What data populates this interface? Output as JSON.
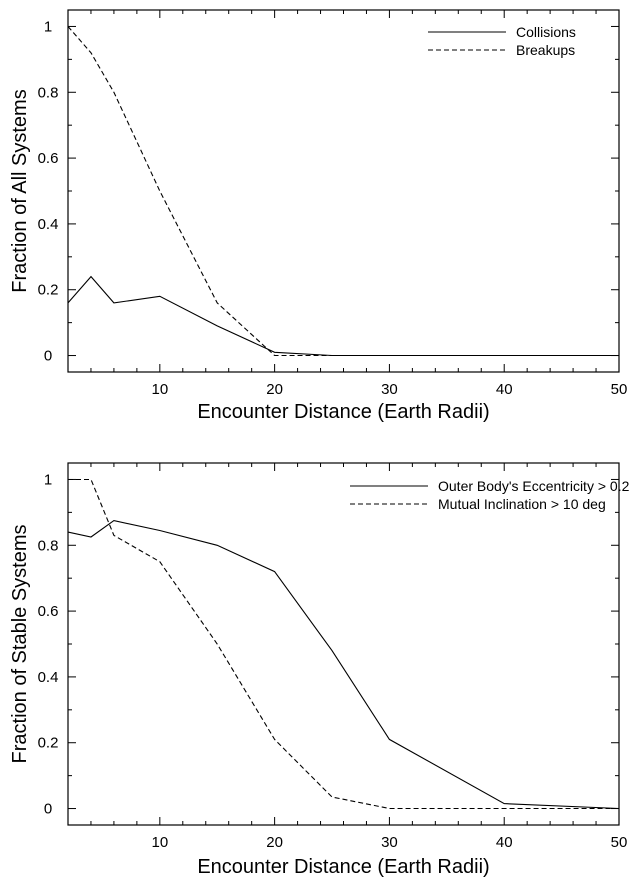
{
  "chart_data": [
    {
      "type": "line",
      "xlabel": "Encounter Distance (Earth Radii)",
      "ylabel": "Fraction of All Systems",
      "xlim": [
        2,
        50
      ],
      "ylim": [
        -0.05,
        1.05
      ],
      "xticks": [
        10,
        20,
        30,
        40,
        50
      ],
      "yticks": [
        0,
        0.2,
        0.4,
        0.6,
        0.8,
        1
      ],
      "ytick_labels": [
        "0",
        "0.2",
        "0.4",
        "0.6",
        "0.8",
        "1"
      ],
      "grid": false,
      "legend_position": "top-right",
      "series": [
        {
          "name": "Collisions",
          "line_style": "solid",
          "x": [
            2,
            4,
            6,
            10,
            15,
            20,
            25,
            30,
            40,
            50
          ],
          "y": [
            0.16,
            0.24,
            0.16,
            0.18,
            0.09,
            0.01,
            0,
            0,
            0,
            0
          ]
        },
        {
          "name": "Breakups",
          "line_style": "dashed",
          "x": [
            2,
            4,
            6,
            10,
            15,
            20,
            25,
            30,
            40,
            50
          ],
          "y": [
            1.0,
            0.92,
            0.8,
            0.5,
            0.16,
            0.0,
            0,
            0,
            0,
            0
          ]
        }
      ]
    },
    {
      "type": "line",
      "xlabel": "Encounter Distance (Earth Radii)",
      "ylabel": "Fraction of Stable Systems",
      "xlim": [
        2,
        50
      ],
      "ylim": [
        -0.05,
        1.05
      ],
      "xticks": [
        10,
        20,
        30,
        40,
        50
      ],
      "yticks": [
        0,
        0.2,
        0.4,
        0.6,
        0.8,
        1
      ],
      "ytick_labels": [
        "0",
        "0.2",
        "0.4",
        "0.6",
        "0.8",
        "1"
      ],
      "grid": false,
      "legend_position": "top-right",
      "series": [
        {
          "name": "Outer Body's Eccentricity > 0.2",
          "line_style": "solid",
          "x": [
            2,
            4,
            6,
            10,
            15,
            20,
            25,
            30,
            40,
            50
          ],
          "y": [
            0.84,
            0.825,
            0.875,
            0.845,
            0.8,
            0.72,
            0.48,
            0.21,
            0.015,
            0.0
          ]
        },
        {
          "name": "Mutual Inclination > 10 deg",
          "line_style": "dashed",
          "x": [
            2,
            4,
            6,
            10,
            15,
            20,
            25,
            30,
            40,
            50
          ],
          "y": [
            1.0,
            1.0,
            0.83,
            0.75,
            0.5,
            0.21,
            0.035,
            0.0,
            0.0,
            0.0
          ]
        }
      ]
    }
  ]
}
